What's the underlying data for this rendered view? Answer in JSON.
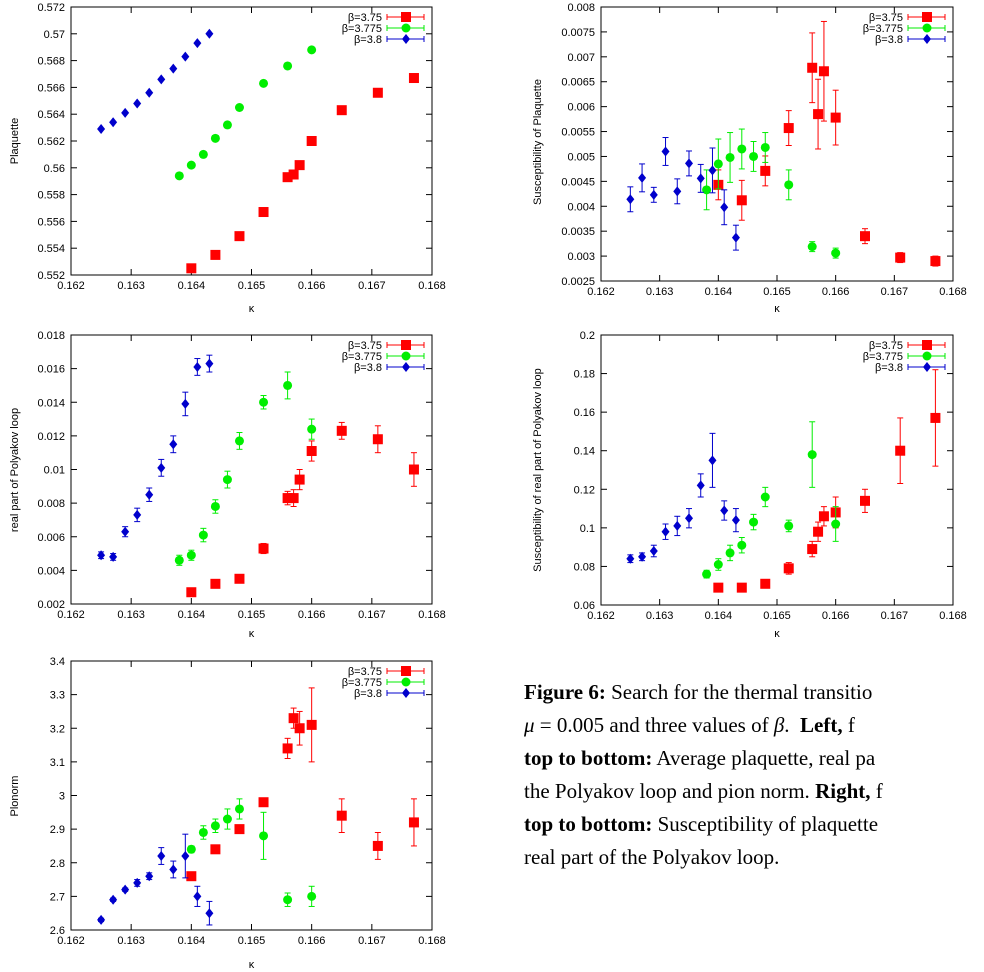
{
  "colors": {
    "b375": "#ff0000",
    "b3775": "#00ee00",
    "b38": "#0000cc"
  },
  "chart_data": [
    {
      "type": "scatter",
      "xlabel": "κ",
      "ylabel": "Plaquette",
      "xlim": [
        0.162,
        0.168
      ],
      "ylim": [
        0.552,
        0.572
      ],
      "xticks": [
        "0.162",
        "0.163",
        "0.164",
        "0.165",
        "0.166",
        "0.167",
        "0.168"
      ],
      "yticks": [
        "0.552",
        "0.554",
        "0.556",
        "0.558",
        "0.56",
        "0.562",
        "0.564",
        "0.566",
        "0.568",
        "0.57",
        "0.572"
      ],
      "legend_position": "top-right",
      "series": [
        {
          "name": "β=3.75",
          "color": "#ff0000",
          "marker": "square",
          "x": [
            0.164,
            0.1644,
            0.1648,
            0.1652,
            0.1656,
            0.1657,
            0.1658,
            0.166,
            0.1665,
            0.1671,
            0.1677
          ],
          "y": [
            0.5525,
            0.5535,
            0.5549,
            0.5567,
            0.5593,
            0.5595,
            0.5602,
            0.562,
            0.5643,
            0.5656,
            0.5667
          ],
          "err": [
            0,
            0,
            0,
            0,
            0,
            0,
            0,
            0,
            0,
            0,
            0
          ]
        },
        {
          "name": "β=3.775",
          "color": "#00ee00",
          "marker": "circle",
          "x": [
            0.1638,
            0.164,
            0.1642,
            0.1644,
            0.1646,
            0.1648,
            0.1652,
            0.1656,
            0.166
          ],
          "y": [
            0.5594,
            0.5602,
            0.561,
            0.5622,
            0.5632,
            0.5645,
            0.5663,
            0.5676,
            0.5688
          ],
          "err": [
            0,
            0,
            0,
            0,
            0,
            0,
            0,
            0,
            0
          ]
        },
        {
          "name": "β=3.8",
          "color": "#0000cc",
          "marker": "diamond",
          "x": [
            0.1625,
            0.1627,
            0.1629,
            0.1631,
            0.1633,
            0.1635,
            0.1637,
            0.1639,
            0.1641,
            0.1643
          ],
          "y": [
            0.5629,
            0.5634,
            0.5641,
            0.5648,
            0.5656,
            0.5666,
            0.5674,
            0.5683,
            0.5693,
            0.57
          ],
          "err": [
            0,
            0,
            0,
            0,
            0,
            0,
            0,
            0,
            0,
            0
          ]
        }
      ]
    },
    {
      "type": "scatter",
      "xlabel": "κ",
      "ylabel": "real part of Polyakov loop",
      "xlim": [
        0.162,
        0.168
      ],
      "ylim": [
        0.002,
        0.018
      ],
      "xticks": [
        "0.162",
        "0.163",
        "0.164",
        "0.165",
        "0.166",
        "0.167",
        "0.168"
      ],
      "yticks": [
        "0.002",
        "0.004",
        "0.006",
        "0.008",
        "0.01",
        "0.012",
        "0.014",
        "0.016",
        "0.018"
      ],
      "legend_position": "top-right",
      "series": [
        {
          "name": "β=3.75",
          "color": "#ff0000",
          "marker": "square",
          "x": [
            0.164,
            0.1644,
            0.1648,
            0.1652,
            0.1656,
            0.1657,
            0.1658,
            0.166,
            0.1665,
            0.1671,
            0.1677
          ],
          "y": [
            0.0027,
            0.0032,
            0.0035,
            0.0053,
            0.0083,
            0.0083,
            0.0094,
            0.0111,
            0.0123,
            0.0118,
            0.01
          ],
          "err": [
            0.0001,
            0.0001,
            0.0002,
            0.0003,
            0.0004,
            0.0005,
            0.0006,
            0.0006,
            0.0005,
            0.0008,
            0.001
          ]
        },
        {
          "name": "β=3.775",
          "color": "#00ee00",
          "marker": "circle",
          "x": [
            0.1638,
            0.164,
            0.1642,
            0.1644,
            0.1646,
            0.1648,
            0.1652,
            0.1656,
            0.166
          ],
          "y": [
            0.0046,
            0.0049,
            0.0061,
            0.0078,
            0.0094,
            0.0117,
            0.014,
            0.015,
            0.0124
          ],
          "err": [
            0.0003,
            0.0003,
            0.0004,
            0.0004,
            0.0005,
            0.0005,
            0.0004,
            0.0008,
            0.0006
          ]
        },
        {
          "name": "β=3.8",
          "color": "#0000cc",
          "marker": "diamond",
          "x": [
            0.1625,
            0.1627,
            0.1629,
            0.1631,
            0.1633,
            0.1635,
            0.1637,
            0.1639,
            0.1641,
            0.1643
          ],
          "y": [
            0.0049,
            0.0048,
            0.0063,
            0.0073,
            0.0085,
            0.0101,
            0.0115,
            0.0139,
            0.0161,
            0.0163
          ],
          "err": [
            0.0002,
            0.0002,
            0.0003,
            0.0004,
            0.0004,
            0.0005,
            0.0005,
            0.0007,
            0.0005,
            0.0005
          ]
        }
      ]
    },
    {
      "type": "scatter",
      "xlabel": "κ",
      "ylabel": "Plonorm",
      "xlim": [
        0.162,
        0.168
      ],
      "ylim": [
        2.6,
        3.4
      ],
      "xticks": [
        "0.162",
        "0.163",
        "0.164",
        "0.165",
        "0.166",
        "0.167",
        "0.168"
      ],
      "yticks": [
        "2.6",
        "2.7",
        "2.8",
        "2.9",
        "3",
        "3.1",
        "3.2",
        "3.3",
        "3.4"
      ],
      "legend_position": "top-right",
      "series": [
        {
          "name": "β=3.75",
          "color": "#ff0000",
          "marker": "square",
          "x": [
            0.164,
            0.1644,
            0.1648,
            0.1652,
            0.1656,
            0.1657,
            0.1658,
            0.166,
            0.1665,
            0.1671,
            0.1677
          ],
          "y": [
            2.76,
            2.84,
            2.9,
            2.98,
            3.14,
            3.23,
            3.2,
            3.21,
            2.94,
            2.85,
            2.92
          ],
          "err": [
            0,
            0,
            0,
            0,
            0.03,
            0.03,
            0.05,
            0.11,
            0.05,
            0.04,
            0.07
          ]
        },
        {
          "name": "β=3.775",
          "color": "#00ee00",
          "marker": "circle",
          "x": [
            0.164,
            0.1642,
            0.1644,
            0.1646,
            0.1648,
            0.1652,
            0.1656,
            0.166
          ],
          "y": [
            2.84,
            2.89,
            2.91,
            2.93,
            2.96,
            2.88,
            2.69,
            2.7
          ],
          "err": [
            0.01,
            0.02,
            0.02,
            0.03,
            0.03,
            0.07,
            0.02,
            0.03
          ]
        },
        {
          "name": "β=3.8",
          "color": "#0000cc",
          "marker": "diamond",
          "x": [
            0.1625,
            0.1627,
            0.1629,
            0.1631,
            0.1633,
            0.1635,
            0.1637,
            0.1639,
            0.1641,
            0.1643
          ],
          "y": [
            2.63,
            2.69,
            2.72,
            2.74,
            2.76,
            2.82,
            2.78,
            2.82,
            2.7,
            2.65
          ],
          "err": [
            0.005,
            0.005,
            0.005,
            0.01,
            0.01,
            0.025,
            0.025,
            0.065,
            0.03,
            0.035
          ]
        }
      ]
    },
    {
      "type": "scatter",
      "xlabel": "κ",
      "ylabel": "Susceptibility of Plaquette",
      "xlim": [
        0.162,
        0.168
      ],
      "ylim": [
        0.0025,
        0.008
      ],
      "xticks": [
        "0.162",
        "0.163",
        "0.164",
        "0.165",
        "0.166",
        "0.167",
        "0.168"
      ],
      "yticks": [
        "0.0025",
        "0.003",
        "0.0035",
        "0.004",
        "0.0045",
        "0.005",
        "0.0055",
        "0.006",
        "0.0065",
        "0.007",
        "0.0075",
        "0.008"
      ],
      "legend_position": "top-right",
      "series": [
        {
          "name": "β=3.75",
          "color": "#ff0000",
          "marker": "square",
          "x": [
            0.164,
            0.1644,
            0.1648,
            0.1652,
            0.1656,
            0.1657,
            0.1658,
            0.166,
            0.1665,
            0.1671,
            0.1677
          ],
          "y": [
            0.00443,
            0.00412,
            0.00471,
            0.00557,
            0.00678,
            0.00585,
            0.00671,
            0.00578,
            0.0034,
            0.00297,
            0.0029
          ],
          "err": [
            0.0003,
            0.0004,
            0.0003,
            0.00035,
            0.0007,
            0.0007,
            0.001,
            0.00055,
            0.00015,
            0.0001,
            0.0001
          ]
        },
        {
          "name": "β=3.775",
          "color": "#00ee00",
          "marker": "circle",
          "x": [
            0.1638,
            0.164,
            0.1642,
            0.1644,
            0.1646,
            0.1648,
            0.1652,
            0.1656,
            0.166
          ],
          "y": [
            0.00433,
            0.00485,
            0.00498,
            0.00515,
            0.005,
            0.00518,
            0.00443,
            0.00319,
            0.00306
          ],
          "err": [
            0.0004,
            0.0005,
            0.0005,
            0.0004,
            0.0003,
            0.0003,
            0.0003,
            0.0001,
            0.0001
          ]
        },
        {
          "name": "β=3.8",
          "color": "#0000cc",
          "marker": "diamond",
          "x": [
            0.1625,
            0.1627,
            0.1629,
            0.1631,
            0.1633,
            0.1635,
            0.1637,
            0.1639,
            0.1641,
            0.1643
          ],
          "y": [
            0.00414,
            0.00457,
            0.00423,
            0.0051,
            0.0043,
            0.00486,
            0.00456,
            0.00472,
            0.00398,
            0.00337
          ],
          "err": [
            0.00025,
            0.00028,
            0.00015,
            0.00028,
            0.00025,
            0.00025,
            0.00028,
            0.00045,
            0.00035,
            0.00025
          ]
        }
      ]
    },
    {
      "type": "scatter",
      "xlabel": "κ",
      "ylabel": "Susceptibility of real part of Polyakov loop",
      "xlim": [
        0.162,
        0.168
      ],
      "ylim": [
        0.06,
        0.2
      ],
      "xticks": [
        "0.162",
        "0.163",
        "0.164",
        "0.165",
        "0.166",
        "0.167",
        "0.168"
      ],
      "yticks": [
        "0.06",
        "0.08",
        "0.1",
        "0.12",
        "0.14",
        "0.16",
        "0.18",
        "0.2"
      ],
      "legend_position": "top-right",
      "series": [
        {
          "name": "β=3.75",
          "color": "#ff0000",
          "marker": "square",
          "x": [
            0.164,
            0.1644,
            0.1648,
            0.1652,
            0.1656,
            0.1657,
            0.1658,
            0.166,
            0.1665,
            0.1671,
            0.1677
          ],
          "y": [
            0.069,
            0.069,
            0.071,
            0.079,
            0.089,
            0.098,
            0.106,
            0.108,
            0.114,
            0.14,
            0.157
          ],
          "err": [
            0.0015,
            0.0015,
            0.0015,
            0.003,
            0.004,
            0.005,
            0.005,
            0.008,
            0.006,
            0.017,
            0.025
          ]
        },
        {
          "name": "β=3.775",
          "color": "#00ee00",
          "marker": "circle",
          "x": [
            0.1638,
            0.164,
            0.1642,
            0.1644,
            0.1646,
            0.1648,
            0.1652,
            0.1656,
            0.166
          ],
          "y": [
            0.076,
            0.081,
            0.087,
            0.091,
            0.103,
            0.116,
            0.101,
            0.138,
            0.102
          ],
          "err": [
            0.002,
            0.003,
            0.004,
            0.004,
            0.004,
            0.005,
            0.003,
            0.017,
            0.009
          ]
        },
        {
          "name": "β=3.8",
          "color": "#0000cc",
          "marker": "diamond",
          "x": [
            0.1625,
            0.1627,
            0.1629,
            0.1631,
            0.1633,
            0.1635,
            0.1637,
            0.1639,
            0.1641,
            0.1643
          ],
          "y": [
            0.084,
            0.085,
            0.088,
            0.098,
            0.101,
            0.105,
            0.122,
            0.135,
            0.109,
            0.104
          ],
          "err": [
            0.002,
            0.002,
            0.003,
            0.004,
            0.005,
            0.005,
            0.006,
            0.014,
            0.005,
            0.006
          ]
        }
      ]
    }
  ],
  "caption": {
    "figure_label": "Figure 6:",
    "line1_text": " Search for the thermal transitio",
    "line2_mu": "μ",
    "line2_eq": " = 0.005 and three values of ",
    "line2_beta": "β",
    "line2_dot": ".",
    "line2_left": "Left,",
    "line2_rest": " f",
    "line3_bold": "top to bottom:",
    "line3_rest": " Average plaquette, real pa",
    "line4_pre": "the Polyakov loop and pion norm. ",
    "line4_right": "Right,",
    "line4_rest": " f",
    "line5_bold": "top to bottom:",
    "line5_rest": " Susceptibility of plaquette",
    "line6": "real part of the Polyakov loop."
  }
}
